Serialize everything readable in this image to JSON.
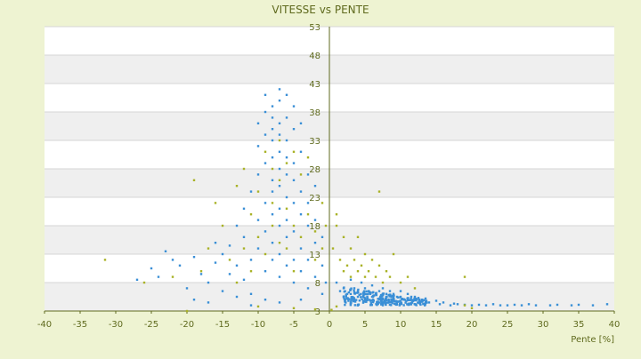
{
  "chart_data": {
    "type": "scatter",
    "title": "VITESSE vs PENTE",
    "xlabel": "Pente [%]",
    "ylabel": "",
    "xlim": [
      -40,
      40
    ],
    "ylim": [
      3,
      53
    ],
    "x_ticks": [
      -40,
      -35,
      -30,
      -25,
      -20,
      -15,
      -10,
      -5,
      0,
      5,
      10,
      15,
      20,
      25,
      30,
      35,
      40
    ],
    "y_ticks": [
      3,
      8,
      13,
      18,
      23,
      28,
      33,
      38,
      43,
      48,
      53
    ],
    "grid": "horizontal bands",
    "legend": "none",
    "series": [
      {
        "color": "#3a8fd6",
        "points": [
          [
            -27,
            8.5
          ],
          [
            -25,
            10.5
          ],
          [
            -24,
            9
          ],
          [
            -23,
            13.5
          ],
          [
            -22,
            12
          ],
          [
            -21,
            11
          ],
          [
            -20,
            7
          ],
          [
            -19,
            12.5
          ],
          [
            -18,
            9.5
          ],
          [
            -17,
            8
          ],
          [
            -16,
            11.5
          ],
          [
            -16,
            15
          ],
          [
            -15,
            13
          ],
          [
            -15,
            6.5
          ],
          [
            -14,
            9.5
          ],
          [
            -14,
            14.5
          ],
          [
            -13,
            18
          ],
          [
            -13,
            11
          ],
          [
            -12,
            8.5
          ],
          [
            -12,
            16
          ],
          [
            -12,
            21
          ],
          [
            -11,
            12
          ],
          [
            -11,
            24
          ],
          [
            -11,
            6
          ],
          [
            -10,
            14
          ],
          [
            -10,
            19
          ],
          [
            -10,
            27
          ],
          [
            -10,
            32
          ],
          [
            -10,
            36
          ],
          [
            -9,
            10
          ],
          [
            -9,
            17
          ],
          [
            -9,
            22
          ],
          [
            -9,
            29
          ],
          [
            -9,
            34
          ],
          [
            -9,
            38
          ],
          [
            -9,
            41
          ],
          [
            -8,
            12
          ],
          [
            -8,
            15
          ],
          [
            -8,
            20
          ],
          [
            -8,
            24
          ],
          [
            -8,
            26
          ],
          [
            -8,
            30
          ],
          [
            -8,
            33
          ],
          [
            -8,
            35
          ],
          [
            -8,
            37
          ],
          [
            -8,
            39
          ],
          [
            -7,
            9
          ],
          [
            -7,
            13
          ],
          [
            -7,
            18
          ],
          [
            -7,
            21
          ],
          [
            -7,
            25
          ],
          [
            -7,
            28
          ],
          [
            -7,
            31
          ],
          [
            -7,
            34
          ],
          [
            -7,
            36
          ],
          [
            -7,
            40
          ],
          [
            -7,
            42
          ],
          [
            -6,
            11
          ],
          [
            -6,
            16
          ],
          [
            -6,
            19
          ],
          [
            -6,
            23
          ],
          [
            -6,
            27
          ],
          [
            -6,
            30
          ],
          [
            -6,
            33
          ],
          [
            -6,
            37
          ],
          [
            -6,
            41
          ],
          [
            -5,
            8
          ],
          [
            -5,
            12
          ],
          [
            -5,
            17
          ],
          [
            -5,
            22
          ],
          [
            -5,
            26
          ],
          [
            -5,
            29
          ],
          [
            -5,
            35
          ],
          [
            -5,
            39
          ],
          [
            -4,
            10
          ],
          [
            -4,
            14
          ],
          [
            -4,
            20
          ],
          [
            -4,
            24
          ],
          [
            -4,
            31
          ],
          [
            -4,
            36
          ],
          [
            -3,
            7
          ],
          [
            -3,
            12
          ],
          [
            -3,
            18
          ],
          [
            -3,
            22
          ],
          [
            -3,
            27
          ],
          [
            -2,
            9
          ],
          [
            -2,
            15
          ],
          [
            -2,
            19
          ],
          [
            -2,
            25
          ],
          [
            -1,
            11
          ],
          [
            -1,
            16
          ],
          [
            -1,
            6
          ],
          [
            -0.5,
            8
          ],
          [
            -13,
            5.5
          ],
          [
            -17,
            4.5
          ],
          [
            -19,
            5
          ],
          [
            -11,
            4
          ],
          [
            -9,
            5
          ],
          [
            -7,
            4.5
          ],
          [
            -4,
            5
          ],
          [
            1,
            8
          ],
          [
            1.5,
            6.5
          ],
          [
            2,
            7
          ],
          [
            2.5,
            6
          ],
          [
            3,
            8.5
          ],
          [
            3,
            6
          ],
          [
            3.5,
            7
          ],
          [
            4,
            6.5
          ],
          [
            4,
            5.5
          ],
          [
            4.5,
            8
          ],
          [
            5,
            7
          ],
          [
            5,
            6
          ],
          [
            5,
            5
          ],
          [
            5.5,
            6.5
          ],
          [
            6,
            7.5
          ],
          [
            6,
            5.5
          ],
          [
            6.5,
            6
          ],
          [
            7,
            6.5
          ],
          [
            7,
            5
          ],
          [
            7.5,
            7
          ],
          [
            8,
            5.5
          ],
          [
            8,
            6
          ],
          [
            8.5,
            6.5
          ],
          [
            9,
            5
          ],
          [
            9,
            6
          ],
          [
            9.5,
            5.5
          ],
          [
            10,
            5.5
          ],
          [
            10,
            6.5
          ],
          [
            10.5,
            5
          ],
          [
            11,
            6
          ],
          [
            11,
            5
          ],
          [
            11.5,
            5.5
          ],
          [
            12,
            5.5
          ],
          [
            12,
            5
          ],
          [
            12.5,
            5.3
          ],
          [
            13,
            5
          ],
          [
            13.5,
            5.2
          ],
          [
            14,
            4.5
          ],
          [
            15,
            4.8
          ],
          [
            15.5,
            4.2
          ],
          [
            16,
            4.5
          ],
          [
            17,
            4
          ],
          [
            17.5,
            4.3
          ],
          [
            18,
            4.2
          ],
          [
            19,
            4.1
          ],
          [
            20,
            4
          ],
          [
            21,
            4.1
          ],
          [
            22,
            4
          ],
          [
            23,
            4.2
          ],
          [
            24,
            4
          ],
          [
            25,
            4
          ],
          [
            26,
            4.1
          ],
          [
            27,
            4
          ],
          [
            28,
            4.2
          ],
          [
            29,
            4
          ],
          [
            31,
            4
          ],
          [
            32,
            4.1
          ],
          [
            34,
            4
          ],
          [
            35,
            4.1
          ],
          [
            37,
            4
          ],
          [
            39,
            4.2
          ]
        ]
      },
      {
        "color": "#a9b227",
        "points": [
          [
            -31.5,
            12
          ],
          [
            -26,
            8
          ],
          [
            -22,
            9
          ],
          [
            -19,
            26
          ],
          [
            -18,
            10
          ],
          [
            -17,
            14
          ],
          [
            -16,
            22
          ],
          [
            -15,
            18
          ],
          [
            -14,
            12
          ],
          [
            -13,
            25
          ],
          [
            -13,
            8
          ],
          [
            -12,
            14
          ],
          [
            -12,
            28
          ],
          [
            -11,
            20
          ],
          [
            -11,
            10
          ],
          [
            -10,
            24
          ],
          [
            -10,
            16
          ],
          [
            -9,
            31
          ],
          [
            -9,
            13
          ],
          [
            -8,
            22
          ],
          [
            -8,
            28
          ],
          [
            -8,
            18
          ],
          [
            -7,
            33
          ],
          [
            -7,
            15
          ],
          [
            -7,
            26
          ],
          [
            -6,
            29
          ],
          [
            -6,
            14
          ],
          [
            -6,
            21
          ],
          [
            -5,
            31
          ],
          [
            -5,
            10
          ],
          [
            -5,
            18
          ],
          [
            -4,
            27
          ],
          [
            -4,
            16
          ],
          [
            -3,
            20
          ],
          [
            -3,
            30
          ],
          [
            -2,
            17
          ],
          [
            -2,
            12
          ],
          [
            -1,
            22
          ],
          [
            -1,
            14
          ],
          [
            -0.5,
            18
          ],
          [
            -20,
            3
          ],
          [
            -10,
            3.8
          ],
          [
            -5,
            3.5
          ],
          [
            0.5,
            14
          ],
          [
            1,
            18
          ],
          [
            1,
            20
          ],
          [
            1.5,
            12
          ],
          [
            2,
            10
          ],
          [
            2,
            16
          ],
          [
            2.5,
            11
          ],
          [
            3,
            9
          ],
          [
            3,
            14
          ],
          [
            3.5,
            12
          ],
          [
            4,
            10
          ],
          [
            4,
            16
          ],
          [
            4.5,
            11
          ],
          [
            5,
            9
          ],
          [
            5,
            13
          ],
          [
            5.5,
            10
          ],
          [
            6,
            12
          ],
          [
            6.5,
            9
          ],
          [
            7,
            11
          ],
          [
            7.5,
            8
          ],
          [
            8,
            10
          ],
          [
            8.5,
            9
          ],
          [
            9,
            13
          ],
          [
            10,
            8
          ],
          [
            11,
            9
          ],
          [
            12,
            7
          ],
          [
            7,
            24
          ],
          [
            19,
            9
          ],
          [
            19,
            4
          ],
          [
            20,
            3.5
          ],
          [
            1,
            3.8
          ],
          [
            0.3,
            3.2
          ],
          [
            -2,
            3.3
          ]
        ]
      }
    ]
  }
}
